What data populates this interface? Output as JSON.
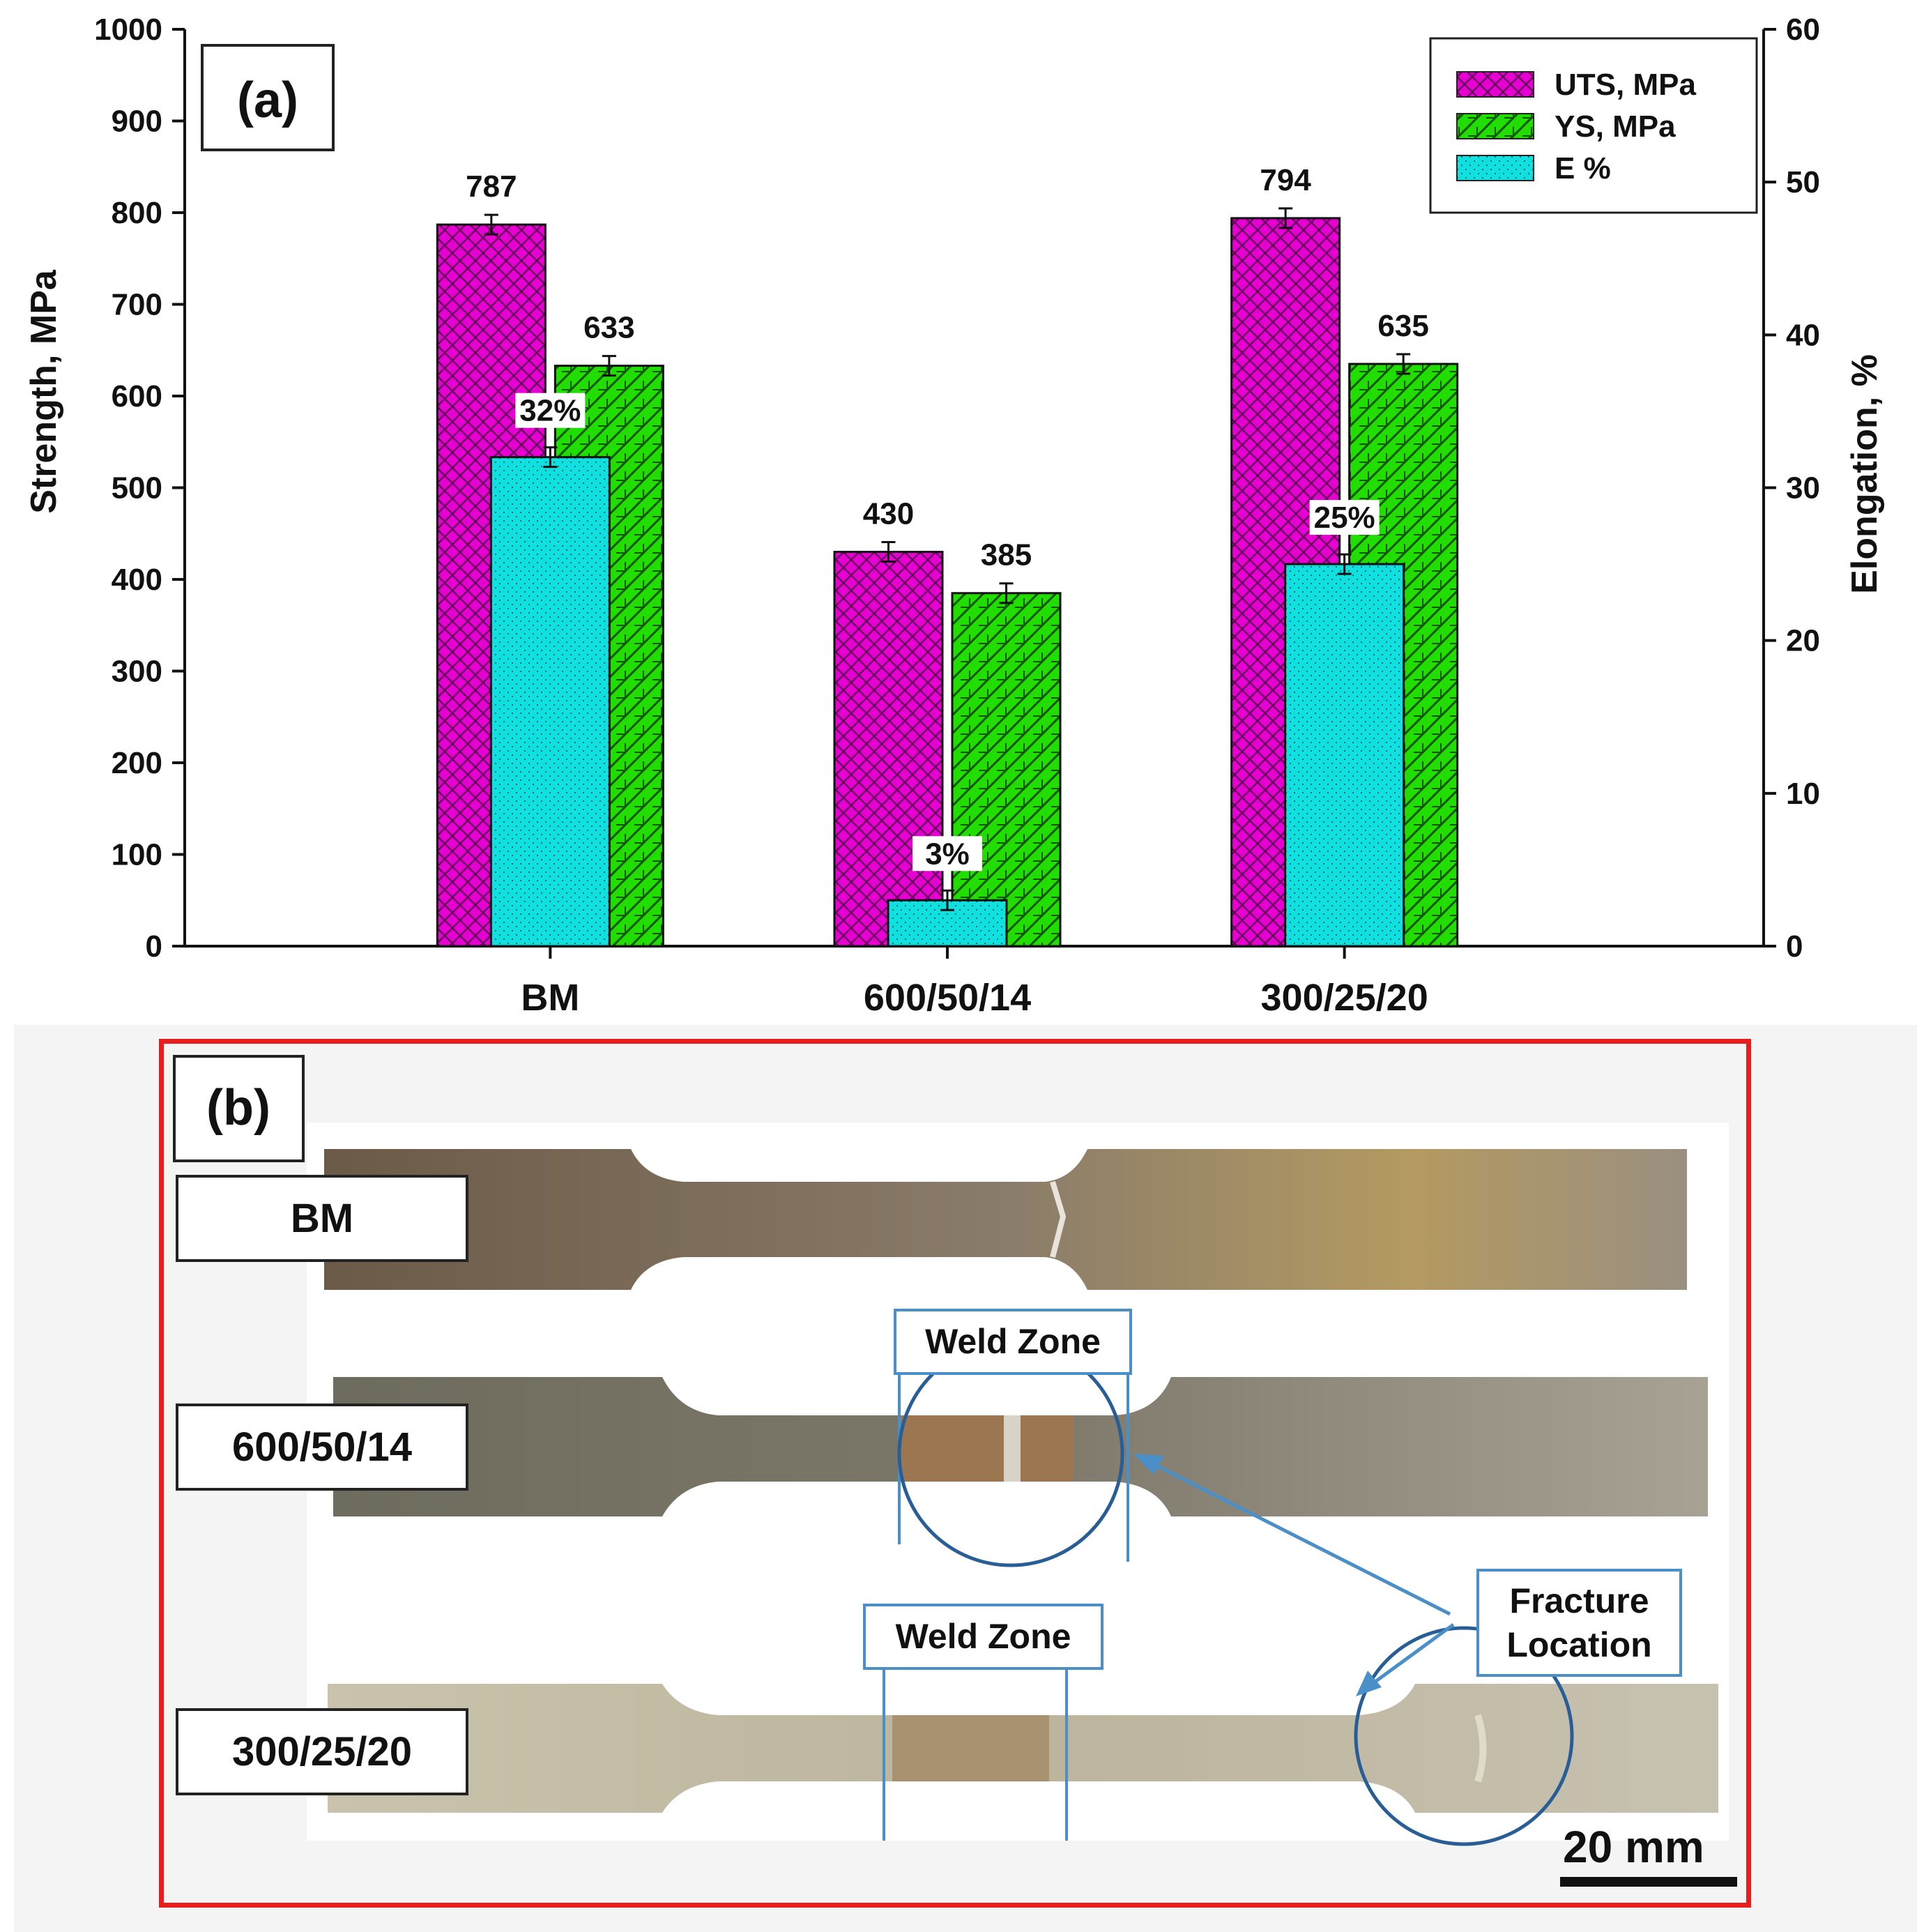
{
  "panel_a": {
    "label": "(a)",
    "ylabel_left": "Strength, MPa",
    "ylabel_right": "Elongation, %",
    "left_ticks": [
      "0",
      "100",
      "200",
      "300",
      "400",
      "500",
      "600",
      "700",
      "800",
      "900",
      "1000"
    ],
    "right_ticks": [
      "0",
      "10",
      "20",
      "30",
      "40",
      "50",
      "60"
    ]
  },
  "chart_data": {
    "type": "bar",
    "categories": [
      "BM",
      "600/50/14",
      "300/25/20"
    ],
    "series": [
      {
        "name": "UTS, MPa",
        "values": [
          787,
          430,
          794
        ],
        "axis": "left",
        "color": "#e600d2",
        "labels": [
          "787",
          "430",
          "794"
        ]
      },
      {
        "name": "YS, MPa",
        "values": [
          633,
          385,
          635
        ],
        "axis": "left",
        "color": "#22dd00",
        "labels": [
          "633",
          "385",
          "635"
        ]
      },
      {
        "name": "E %",
        "values": [
          32,
          3,
          25
        ],
        "axis": "right",
        "color": "#10e0e0",
        "labels": [
          "32%",
          "3%",
          "25%"
        ]
      }
    ],
    "ylim_left": [
      0,
      1000
    ],
    "ylim_right": [
      0,
      60
    ],
    "ylabel": "Strength, MPa",
    "y2label": "Elongation, %",
    "legend_position": "top-right",
    "grid": false,
    "error_bars": true
  },
  "panel_b": {
    "label": "(b)",
    "specimens": [
      {
        "label": "BM"
      },
      {
        "label": "600/50/14"
      },
      {
        "label": "300/25/20"
      }
    ],
    "weld_zone_label": "Weld Zone",
    "fracture_label": [
      "Fracture",
      "Location"
    ],
    "scale_bar": "20 mm",
    "colors": {
      "frame": "#e81e1e",
      "callout": "#4a8fc7"
    }
  }
}
